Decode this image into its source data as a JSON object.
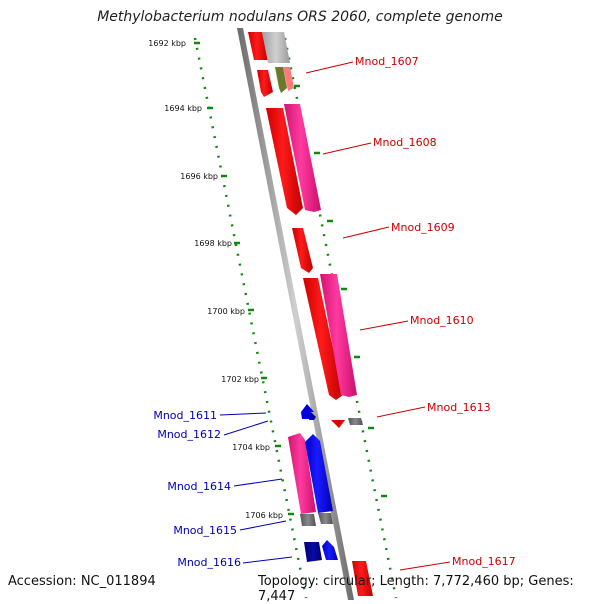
{
  "title": "Methylobacterium nodulans ORS 2060, complete genome",
  "footer": {
    "accession": "Accession: NC_011894",
    "topology": "Topology: circular; Length: 7,772,460 bp; Genes: 7,447"
  },
  "ticks": [
    "1692 kbp",
    "1694 kbp",
    "1696 kbp",
    "1698 kbp",
    "1700 kbp",
    "1702 kbp",
    "1704 kbp",
    "1706 kbp"
  ],
  "genes": {
    "Mnod_1607": "Mnod_1607",
    "Mnod_1608": "Mnod_1608",
    "Mnod_1609": "Mnod_1609",
    "Mnod_1610": "Mnod_1610",
    "Mnod_1613": "Mnod_1613",
    "Mnod_1617": "Mnod_1617",
    "Mnod_1611": "Mnod_1611",
    "Mnod_1612": "Mnod_1612",
    "Mnod_1614": "Mnod_1614",
    "Mnod_1615": "Mnod_1615",
    "Mnod_1616": "Mnod_1616"
  },
  "colors": {
    "forward_label": "#cc0000",
    "reverse_label": "#0000bb",
    "cds_forward": "#ee0000",
    "rna_forward": "#ee1188",
    "cds_reverse": "#0000ee",
    "dark_reverse": "#000088",
    "backbone": "#888888",
    "ticks": "#118811"
  }
}
